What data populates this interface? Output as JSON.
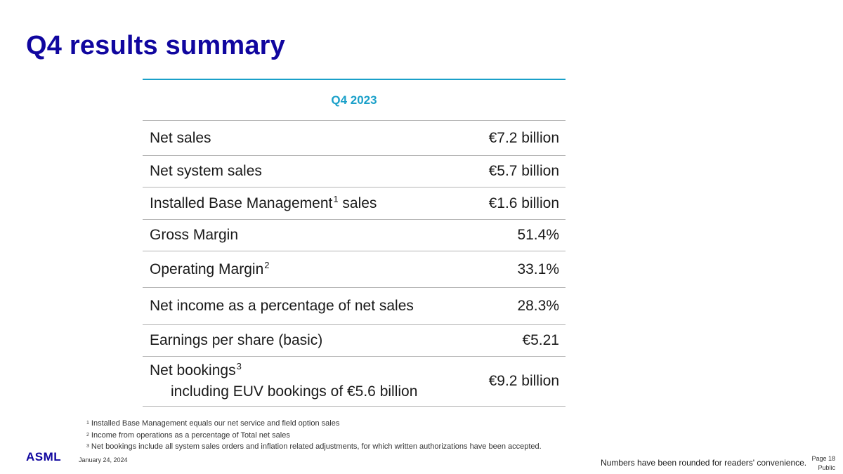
{
  "title": "Q4 results summary",
  "table": {
    "header": "Q4 2023",
    "rows": [
      {
        "label": "Net sales",
        "sup": "",
        "value": "€7.2 billion"
      },
      {
        "label": "Net system sales",
        "sup": "",
        "value": "€5.7 billion"
      },
      {
        "label": "Installed Base Management",
        "sup": "1",
        "label_suffix": " sales",
        "value": "€1.6 billion"
      },
      {
        "label": "Gross Margin",
        "sup": "",
        "value": "51.4%"
      },
      {
        "label": "Operating Margin",
        "sup": "2",
        "value": "33.1%"
      },
      {
        "label": "Net income as a percentage of net sales",
        "sup": "",
        "value": "28.3%"
      },
      {
        "label": "Earnings per share (basic)",
        "sup": "",
        "value": "€5.21"
      }
    ],
    "bookings": {
      "label": "Net bookings",
      "sup": "3",
      "sub_label": "including EUV bookings of €5.6 billion",
      "value": "€9.2 billion"
    }
  },
  "footnotes": [
    {
      "num": "1",
      "text": "Installed Base Management equals our net service and field option sales"
    },
    {
      "num": "2",
      "text": "Income from operations as a percentage of Total net sales"
    },
    {
      "num": "3",
      "text": "Net bookings include all system sales orders and inflation related adjustments, for which written authorizations have been accepted."
    }
  ],
  "footer": {
    "logo": "ASML",
    "date": "January 24, 2024",
    "rounding_note": "Numbers have been rounded for readers' convenience.",
    "page": "Page 18",
    "classification": "Public"
  },
  "colors": {
    "brand_blue": "#10069f",
    "accent_cyan": "#1aa0c9"
  }
}
